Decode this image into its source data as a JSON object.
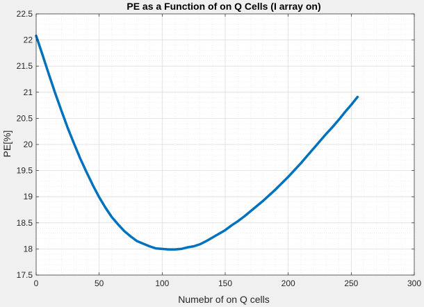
{
  "chart_data": {
    "type": "line",
    "title": "PE as a Function of on Q Cells (I array on)",
    "xlabel": "Numebr of on Q cells",
    "ylabel": "PE[%]",
    "xlim": [
      0,
      300
    ],
    "ylim": [
      17.5,
      22.5
    ],
    "xticks": [
      "0",
      "50",
      "100",
      "150",
      "200",
      "250",
      "300"
    ],
    "yticks": [
      "17.5",
      "18",
      "18.5",
      "19",
      "19.5",
      "20",
      "20.5",
      "21",
      "21.5",
      "22",
      "22.5"
    ],
    "grid": true,
    "minor_grid": true,
    "series": [
      {
        "color": "#0072bd",
        "x": [
          0,
          5,
          10,
          15,
          20,
          25,
          30,
          35,
          40,
          45,
          50,
          55,
          60,
          65,
          70,
          75,
          80,
          85,
          90,
          95,
          100,
          105,
          110,
          115,
          120,
          125,
          130,
          135,
          140,
          145,
          150,
          155,
          160,
          165,
          170,
          175,
          180,
          185,
          190,
          195,
          200,
          205,
          210,
          215,
          220,
          225,
          230,
          235,
          240,
          245,
          250,
          255
        ],
        "y": [
          22.08,
          21.72,
          21.35,
          20.99,
          20.65,
          20.32,
          20.02,
          19.73,
          19.47,
          19.22,
          18.99,
          18.79,
          18.61,
          18.47,
          18.34,
          18.24,
          18.15,
          18.1,
          18.05,
          18.01,
          18.0,
          17.99,
          17.99,
          18.0,
          18.03,
          18.05,
          18.09,
          18.15,
          18.22,
          18.29,
          18.36,
          18.45,
          18.53,
          18.62,
          18.72,
          18.82,
          18.92,
          19.03,
          19.14,
          19.26,
          19.38,
          19.51,
          19.64,
          19.78,
          19.92,
          20.06,
          20.2,
          20.33,
          20.47,
          20.62,
          20.76,
          20.91
        ]
      }
    ]
  }
}
